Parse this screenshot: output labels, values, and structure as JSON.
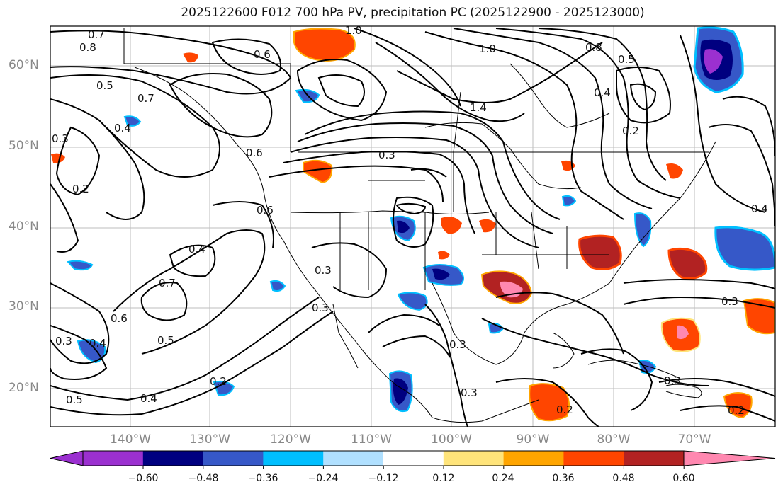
{
  "title": "2025122600 F012 700 hPa PV, precipitation PC (2025122900 - 2025123000)",
  "lat_labels": [
    "60°N",
    "50°N",
    "40°N",
    "30°N",
    "20°N"
  ],
  "lon_labels": [
    "140°W",
    "130°W",
    "120°W",
    "110°W",
    "100°W",
    "90°W",
    "80°W",
    "70°W"
  ],
  "contour_labels": [
    "0.7",
    "0.8",
    "0.6",
    "1.0",
    "1.0",
    "0.5",
    "0.7",
    "0.3",
    "0.4",
    "0.2",
    "0.6",
    "0.3",
    "1.4",
    "0.8",
    "0.5",
    "0.4",
    "0.2",
    "0.6",
    "0.4",
    "0.3",
    "0.3",
    "0.7",
    "0.6",
    "0.3",
    "0.4",
    "0.5",
    "0.3",
    "0.2",
    "0.4",
    "0.5",
    "0.3",
    "0.3",
    "0.2",
    "0.3",
    "0.2",
    "0.4"
  ],
  "colorbar": {
    "ticks": [
      "−0.60",
      "−0.48",
      "−0.36",
      "−0.24",
      "−0.12",
      "0.12",
      "0.24",
      "0.36",
      "0.48",
      "0.60"
    ],
    "colors": [
      "#9b30d0",
      "#000080",
      "#3658c8",
      "#00bfff",
      "#b0e0ff",
      "#ffffff",
      "#ffe47a",
      "#ffa500",
      "#ff4500",
      "#b22222",
      "#ff88b0"
    ]
  }
}
